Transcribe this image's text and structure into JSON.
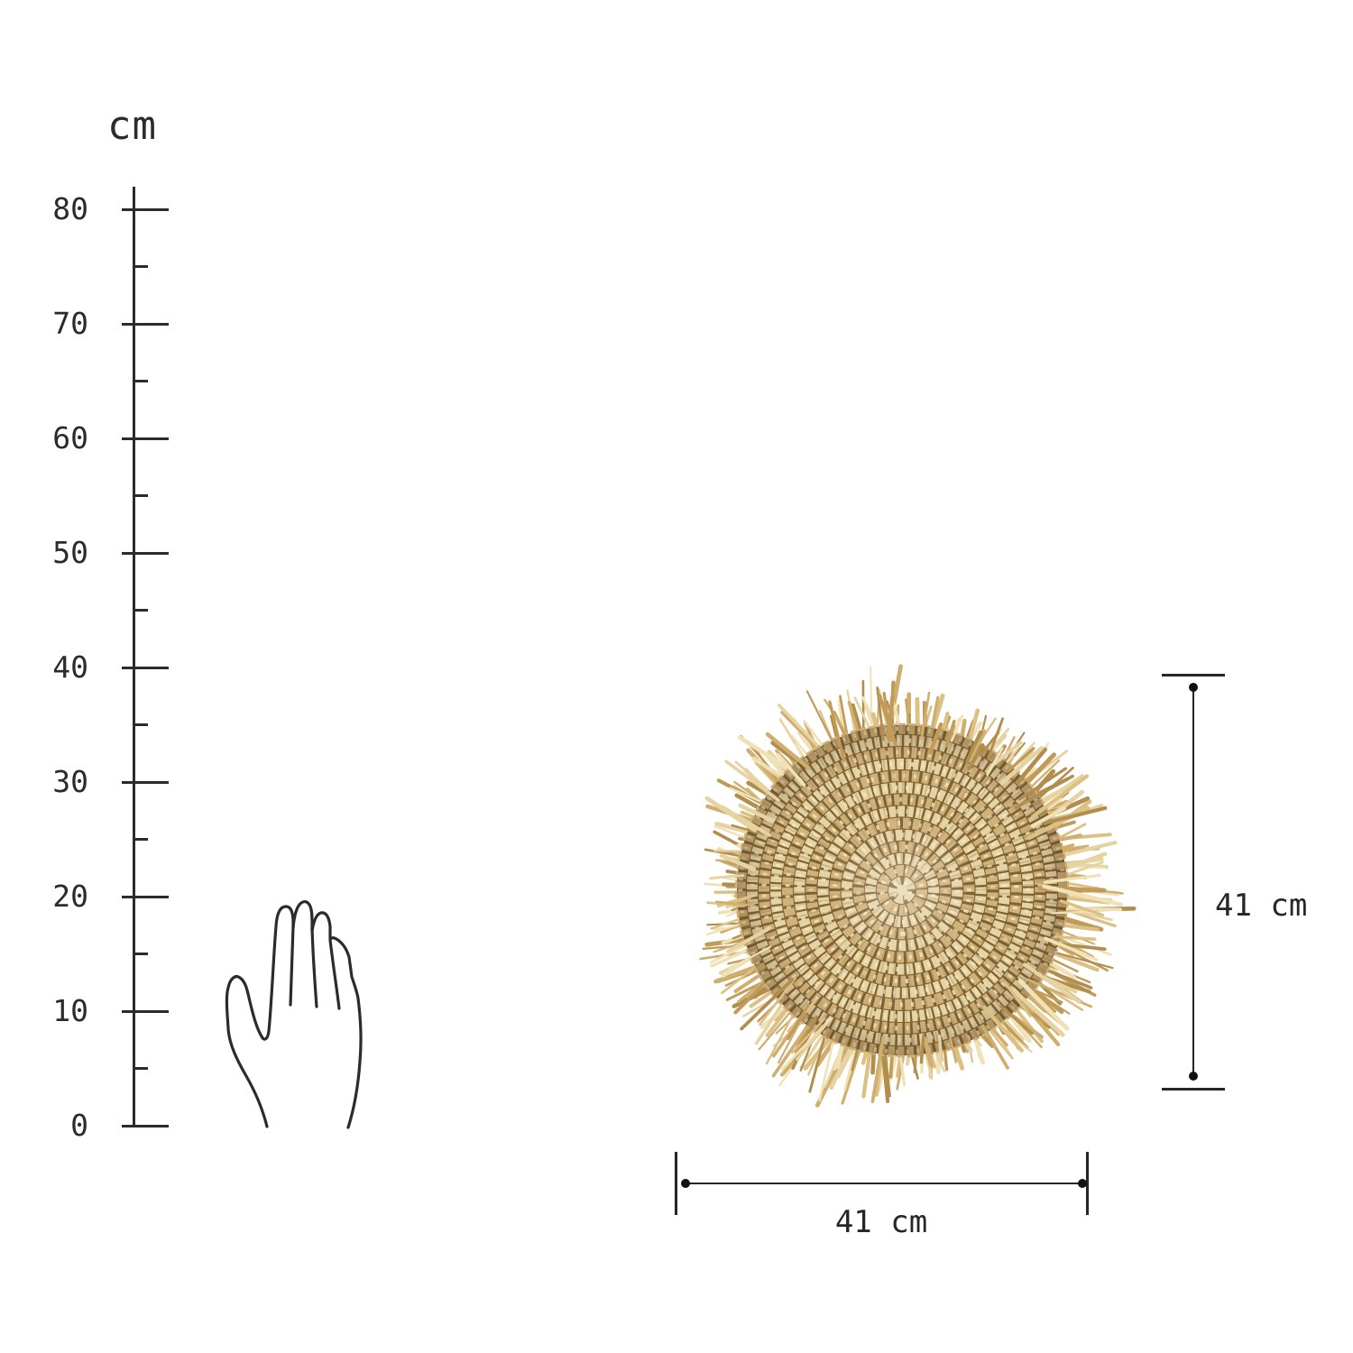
{
  "page": {
    "background_color": "#ffffff",
    "line_color": "#2b2b2b"
  },
  "ruler": {
    "unit_label": "cm",
    "major_labels": [
      "80",
      "70",
      "60",
      "50",
      "40",
      "30",
      "20",
      "10",
      "0"
    ],
    "minor_ticks_between_majors": 1
  },
  "scale_reference": {
    "type": "hand-outline"
  },
  "product": {
    "description": "round woven raffia placemat with fringe",
    "palette": {
      "weave_base": "#7c6136",
      "ring_light": "#e6d3a4",
      "ring_mid": "#d0b178",
      "ring_highlight": "#f3e7c2",
      "ring_shadow": "#a5854f",
      "edge_shade": "rgba(90,66,30,0.30)",
      "center_sheen": "rgba(255,255,255,0.28)",
      "fringe_colors": [
        "#e7d3a1",
        "#dcc084",
        "#cfae6e",
        "#c19c58",
        "#f0e2b6",
        "#b28e4e"
      ]
    }
  },
  "dimensions": {
    "height": {
      "label": "41 cm"
    },
    "width": {
      "label": "41 cm"
    }
  }
}
